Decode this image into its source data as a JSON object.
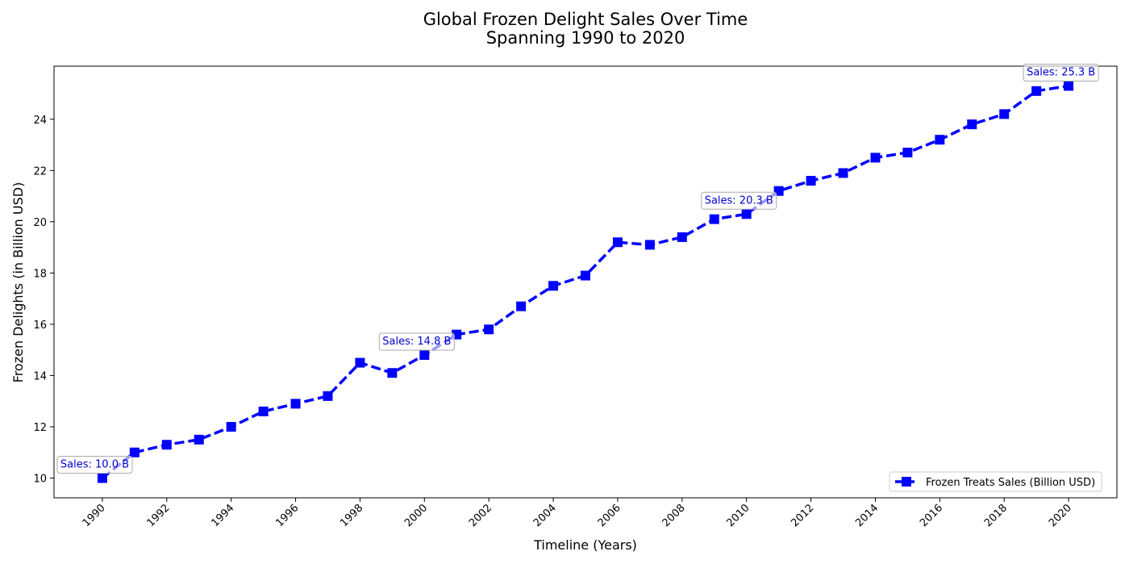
{
  "chart_data": {
    "type": "line",
    "title": "Global Frozen Delight Sales Over Time",
    "subtitle": "Spanning 1990 to 2020",
    "xlabel": "Timeline (Years)",
    "ylabel": "Frozen Delights (in Billion USD)",
    "x": [
      1990,
      1991,
      1992,
      1993,
      1994,
      1995,
      1996,
      1997,
      1998,
      1999,
      2000,
      2001,
      2002,
      2003,
      2004,
      2005,
      2006,
      2007,
      2008,
      2009,
      2010,
      2011,
      2012,
      2013,
      2014,
      2015,
      2016,
      2017,
      2018,
      2019,
      2020
    ],
    "series": [
      {
        "name": "Frozen Treats Sales (Billion USD)",
        "color": "#0000ff",
        "line_style": "dashed",
        "marker": "square",
        "values": [
          10.0,
          11.0,
          11.3,
          11.5,
          12.0,
          12.6,
          12.9,
          13.2,
          14.5,
          14.1,
          14.8,
          15.6,
          15.8,
          16.7,
          17.5,
          17.9,
          19.2,
          19.1,
          19.4,
          20.1,
          20.3,
          21.2,
          21.6,
          21.9,
          22.5,
          22.7,
          23.2,
          23.8,
          24.2,
          25.1,
          25.3
        ]
      }
    ],
    "xlim": [
      1988.5,
      2021.5
    ],
    "ylim": [
      9.23,
      26.07
    ],
    "x_ticks": [
      "1990",
      "1992",
      "1994",
      "1996",
      "1998",
      "2000",
      "2002",
      "2004",
      "2006",
      "2008",
      "2010",
      "2012",
      "2014",
      "2016",
      "2018",
      "2020"
    ],
    "y_ticks": [
      "10",
      "12",
      "14",
      "16",
      "18",
      "20",
      "22",
      "24"
    ],
    "x_tick_rotation_deg": 45,
    "grid": false,
    "legend": {
      "position": "lower-right"
    },
    "annotations": [
      {
        "x": 1990,
        "y": 10.0,
        "text": "Sales: 10.0 B"
      },
      {
        "x": 2000,
        "y": 14.8,
        "text": "Sales: 14.8 B"
      },
      {
        "x": 2010,
        "y": 20.3,
        "text": "Sales: 20.3 B"
      },
      {
        "x": 2020,
        "y": 25.3,
        "text": "Sales: 25.3 B"
      }
    ],
    "annotation_color": "#0000cd"
  }
}
